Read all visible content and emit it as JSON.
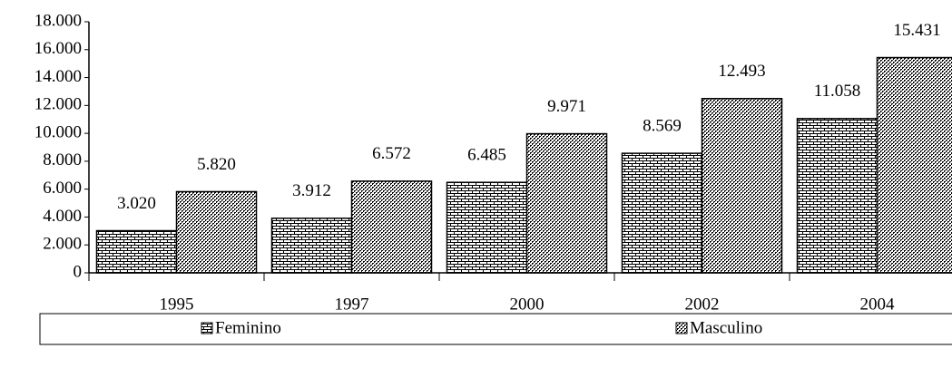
{
  "chart_data": {
    "type": "bar",
    "categories": [
      "1995",
      "1997",
      "2000",
      "2002",
      "2004"
    ],
    "series": [
      {
        "name": "Feminino",
        "values": [
          3020,
          3912,
          6485,
          8569,
          11058
        ],
        "value_labels": [
          "3.020",
          "3.912",
          "6.485",
          "8.569",
          "11.058"
        ]
      },
      {
        "name": "Masculino",
        "values": [
          5820,
          6572,
          9971,
          12493,
          15431
        ],
        "value_labels": [
          "5.820",
          "6.572",
          "9.971",
          "12.493",
          "15.431"
        ]
      }
    ],
    "ylim": [
      0,
      18000
    ],
    "yticks": [
      0,
      {
        "value": 2000,
        "label": "2.000"
      },
      {
        "value": 4000,
        "label": "4.000"
      },
      {
        "value": 6000,
        "label": "6.000"
      },
      {
        "value": 8000,
        "label": "8.000"
      },
      {
        "value": 10000,
        "label": "10.000"
      },
      {
        "value": 12000,
        "label": "12.000"
      },
      {
        "value": 14000,
        "label": "14.000"
      },
      {
        "value": 16000,
        "label": "16.000"
      },
      {
        "value": 18000,
        "label": "18.000"
      }
    ],
    "legend": "bottom"
  }
}
